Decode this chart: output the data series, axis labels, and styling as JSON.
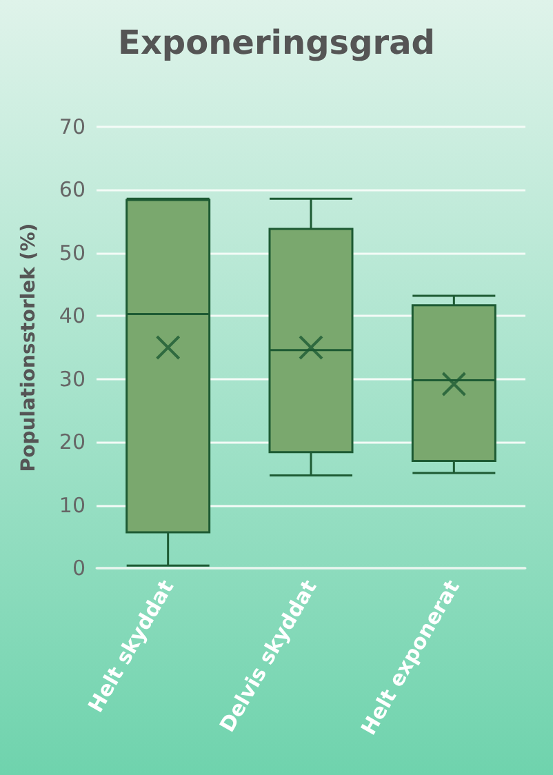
{
  "chart_data": {
    "type": "box",
    "title": "Exponeringsgrad",
    "ylabel": "Populationsstorlek (%)",
    "categories": [
      "Helt skyddat",
      "Delvis skyddat",
      "Helt exponerat"
    ],
    "boxes": [
      {
        "low": 0.4,
        "q1": 5.7,
        "median": 40.3,
        "q3": 58.4,
        "high": 58.6,
        "mean": 35
      },
      {
        "low": 14.7,
        "q1": 18.4,
        "median": 34.6,
        "q3": 53.8,
        "high": 58.6,
        "mean": 35
      },
      {
        "low": 15.1,
        "q1": 17,
        "median": 29.8,
        "q3": 41.7,
        "high": 43.2,
        "mean": 29.2
      }
    ],
    "color": "#7aa86e",
    "ylim": [
      0,
      70
    ],
    "yticks": [
      0,
      10,
      20,
      30,
      40,
      50,
      60,
      70
    ],
    "grid": "y"
  }
}
